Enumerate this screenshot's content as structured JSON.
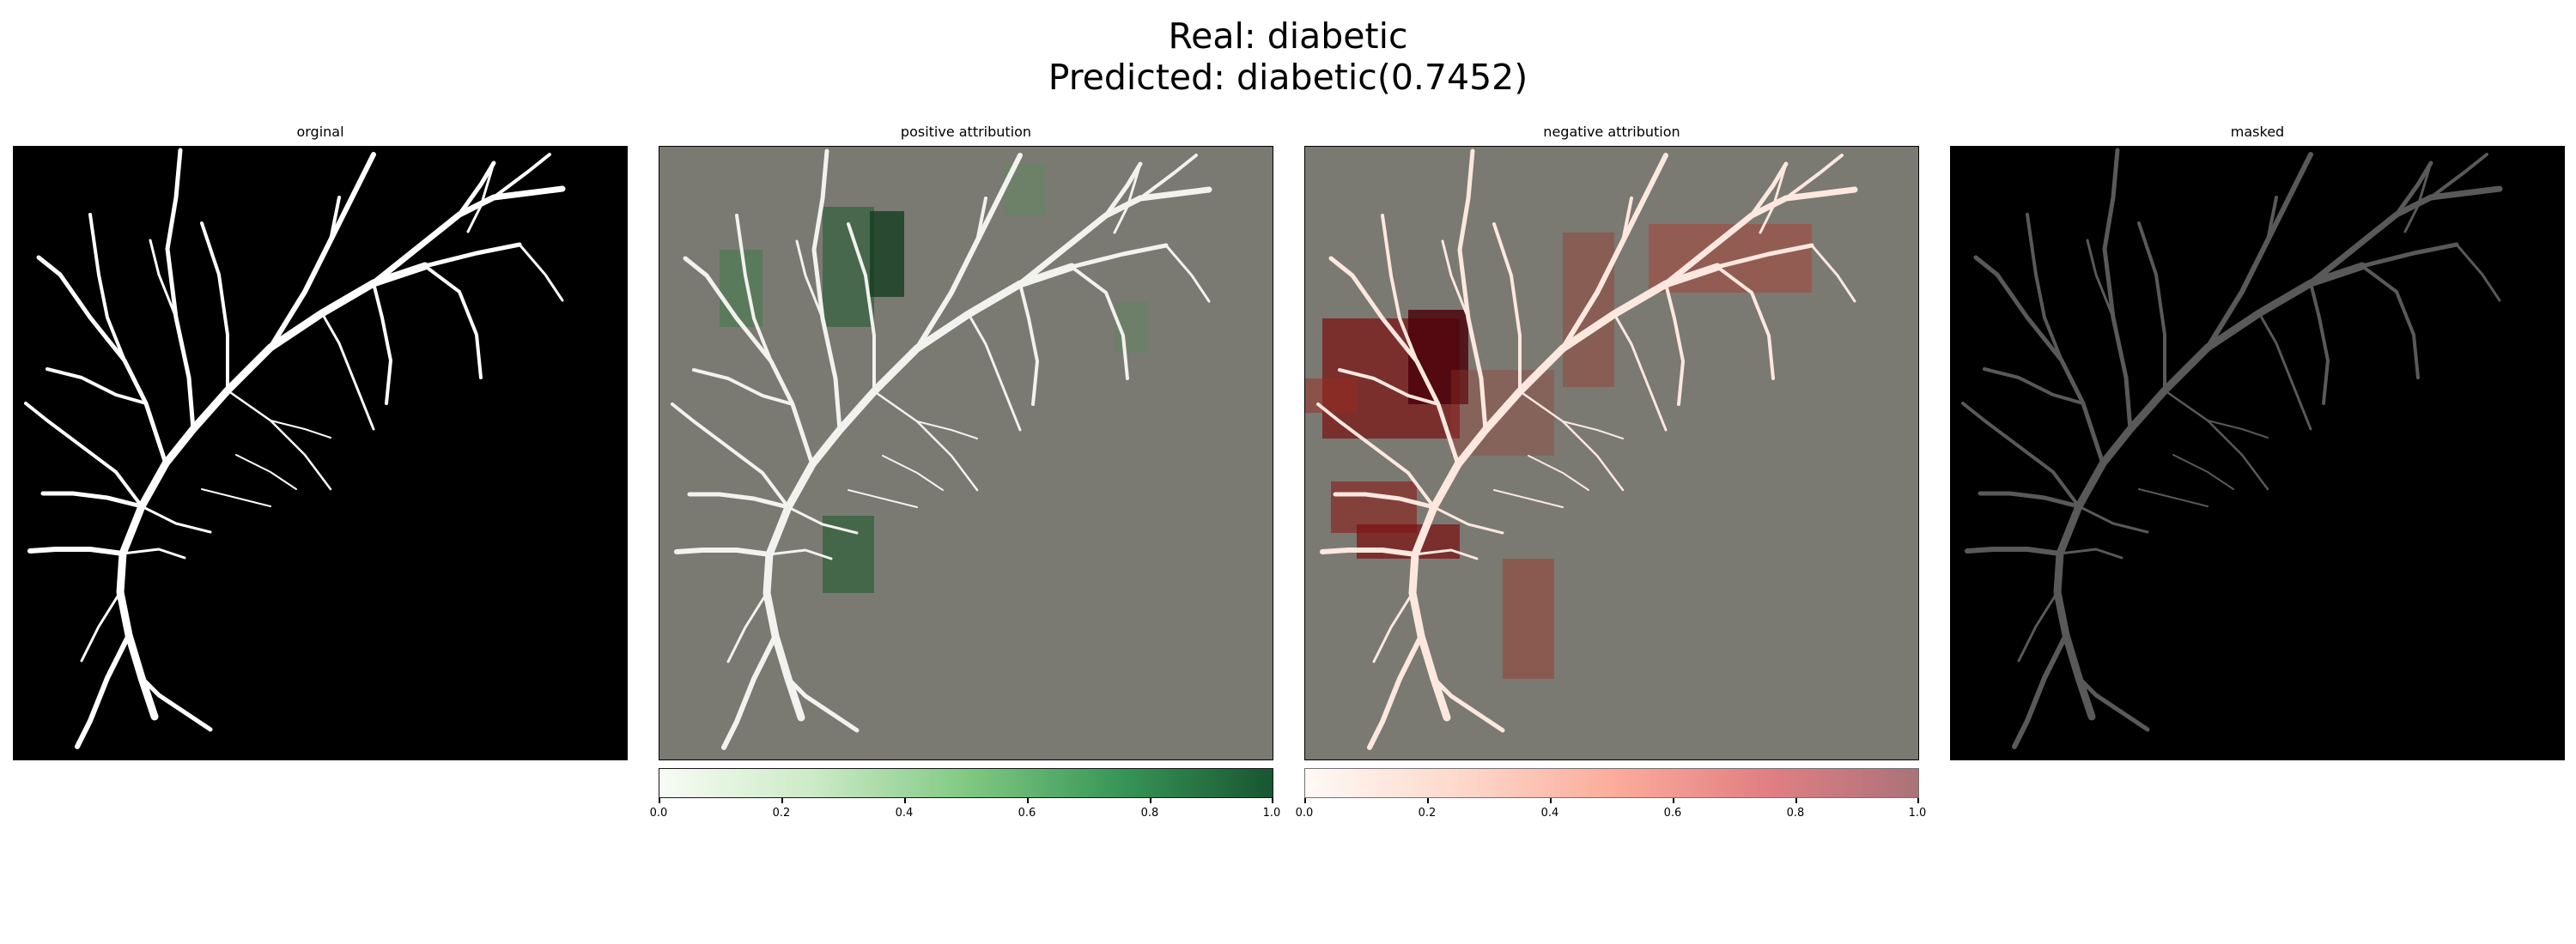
{
  "figure": {
    "real_line": "Real: diabetic",
    "predicted_line": "Predicted: diabetic(0.7452)"
  },
  "panels": [
    {
      "title": "orginal"
    },
    {
      "title": "positive attribution"
    },
    {
      "title": "negative attribution"
    },
    {
      "title": "masked"
    }
  ],
  "colorbars": {
    "positive": {
      "ticks": [
        "0.0",
        "0.2",
        "0.4",
        "0.6",
        "0.8",
        "1.0"
      ],
      "color_start": "#f7fcf5",
      "color_end": "#00441b"
    },
    "negative": {
      "ticks": [
        "0.0",
        "0.2",
        "0.4",
        "0.6",
        "0.8",
        "1.0"
      ],
      "color_start": "#fff5f0",
      "color_end": "#67000d"
    }
  },
  "colors": {
    "overlay_background": "#7a7a72",
    "vessel": "#ffffff",
    "background_dark": "#000000"
  }
}
